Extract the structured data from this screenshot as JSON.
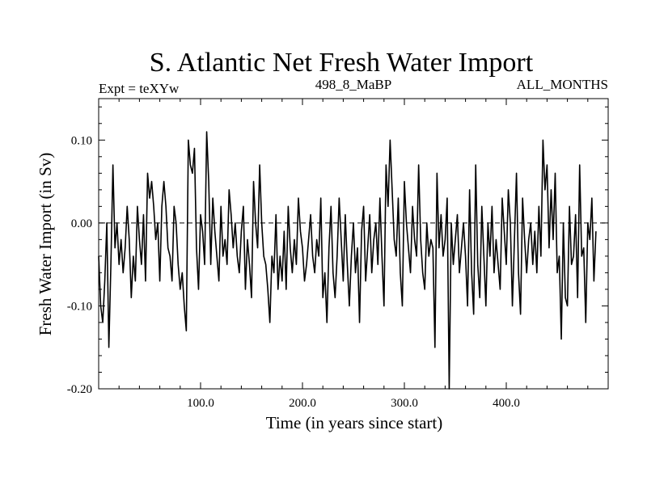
{
  "chart_data": {
    "type": "line",
    "title": "S. Atlantic Net Fresh Water Import",
    "subtitle_left": "Expt = teXYw",
    "subtitle_center": "498_8_MaBP",
    "subtitle_right": "ALL_MONTHS",
    "xlabel": "Time (in years since start)",
    "ylabel": "Fresh Water Import (in Sv)",
    "xlim": [
      0,
      500
    ],
    "ylim": [
      -0.2,
      0.15
    ],
    "x_ticks": [
      100,
      200,
      300,
      400
    ],
    "x_tick_labels": [
      "100.0",
      "200.0",
      "300.0",
      "400.0"
    ],
    "y_ticks": [
      0.1,
      0.0,
      -0.1,
      -0.2
    ],
    "y_tick_labels": [
      "0.10",
      "0.00",
      "-0.10",
      "-0.20"
    ],
    "reference_line": {
      "y": 0.0,
      "style": "dashed"
    },
    "series": [
      {
        "name": "Net Fresh Water Import",
        "x_start": 0,
        "x_step": 2,
        "values": [
          -0.04,
          -0.1,
          -0.12,
          -0.07,
          0.0,
          -0.15,
          -0.05,
          0.07,
          -0.03,
          0.0,
          -0.05,
          -0.02,
          -0.06,
          -0.03,
          0.02,
          -0.02,
          -0.09,
          -0.04,
          -0.07,
          0.02,
          -0.02,
          -0.05,
          0.01,
          -0.07,
          0.06,
          0.03,
          0.05,
          0.02,
          -0.02,
          0.0,
          -0.07,
          0.02,
          0.05,
          0.02,
          -0.03,
          -0.04,
          -0.07,
          0.02,
          0.0,
          -0.05,
          -0.08,
          -0.06,
          -0.1,
          -0.13,
          0.1,
          0.07,
          0.06,
          0.09,
          -0.03,
          -0.08,
          0.01,
          -0.01,
          -0.05,
          0.11,
          0.05,
          -0.05,
          0.03,
          -0.01,
          -0.04,
          -0.07,
          0.02,
          -0.04,
          -0.02,
          -0.05,
          0.04,
          0.01,
          -0.03,
          0.0,
          -0.04,
          -0.06,
          -0.01,
          0.02,
          -0.08,
          -0.02,
          -0.05,
          -0.09,
          0.05,
          0.0,
          -0.03,
          0.07,
          0.0,
          -0.04,
          -0.05,
          -0.08,
          -0.12,
          -0.04,
          -0.06,
          0.01,
          -0.08,
          -0.04,
          -0.07,
          -0.01,
          -0.08,
          0.02,
          -0.03,
          -0.06,
          -0.02,
          -0.05,
          0.03,
          -0.01,
          -0.03,
          -0.07,
          -0.05,
          -0.02,
          0.01,
          -0.04,
          -0.06,
          -0.02,
          -0.04,
          0.03,
          -0.09,
          -0.06,
          -0.12,
          -0.03,
          0.02,
          -0.06,
          -0.09,
          -0.04,
          0.03,
          -0.02,
          -0.07,
          0.01,
          -0.05,
          -0.1,
          -0.04,
          0.0,
          -0.06,
          -0.03,
          -0.12,
          -0.01,
          0.02,
          -0.07,
          -0.03,
          0.01,
          -0.06,
          -0.02,
          0.0,
          -0.05,
          0.03,
          -0.04,
          -0.1,
          0.07,
          0.02,
          0.1,
          0.04,
          -0.02,
          -0.04,
          0.03,
          -0.06,
          -0.1,
          0.05,
          0.0,
          -0.03,
          -0.06,
          0.02,
          -0.02,
          -0.04,
          0.07,
          -0.02,
          -0.06,
          -0.08,
          0.0,
          -0.04,
          -0.02,
          -0.03,
          -0.15,
          0.06,
          -0.03,
          0.01,
          -0.04,
          -0.02,
          0.03,
          -0.2,
          0.0,
          -0.05,
          -0.02,
          0.01,
          -0.06,
          -0.03,
          0.0,
          -0.04,
          -0.1,
          0.04,
          -0.06,
          -0.11,
          0.07,
          -0.05,
          -0.09,
          0.02,
          -0.04,
          -0.1,
          0.0,
          -0.04,
          0.02,
          -0.06,
          -0.02,
          -0.05,
          -0.08,
          0.03,
          -0.01,
          -0.05,
          0.04,
          0.0,
          -0.1,
          -0.02,
          0.06,
          -0.06,
          -0.11,
          0.03,
          -0.02,
          -0.06,
          -0.02,
          0.0,
          -0.05,
          -0.01,
          -0.06,
          0.02,
          -0.04,
          0.1,
          0.04,
          0.07,
          -0.03,
          0.04,
          -0.02,
          0.06,
          -0.06,
          -0.04,
          -0.14,
          0.0,
          -0.09,
          -0.1,
          0.02,
          -0.05,
          -0.04,
          0.01,
          -0.09,
          0.07,
          -0.04,
          -0.03,
          -0.12,
          0.0,
          -0.02,
          0.03,
          -0.07,
          -0.01
        ]
      }
    ]
  }
}
